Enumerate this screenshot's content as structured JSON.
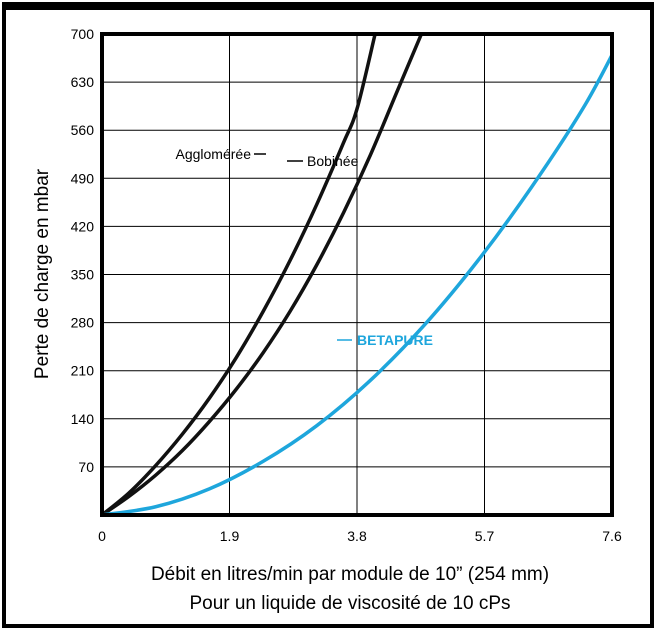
{
  "chart_data": {
    "type": "line",
    "xlabel": "Débit en litres/min par module de 10” (254 mm)",
    "xlabel2": "Pour un liquide de viscosité de 10 cPs",
    "ylabel": "Perte de charge en mbar",
    "xlim": [
      0,
      7.6
    ],
    "ylim": [
      0,
      700
    ],
    "x_ticks": [
      "0",
      "1.9",
      "3.8",
      "5.7",
      "7.6"
    ],
    "y_ticks": [
      "70",
      "140",
      "210",
      "280",
      "350",
      "420",
      "490",
      "560",
      "630",
      "700"
    ],
    "grid": true,
    "series": [
      {
        "name": "Agglomérée",
        "color": "#111111",
        "x": [
          0,
          0.4,
          0.8,
          1.2,
          1.6,
          2.0,
          2.4,
          2.8,
          3.2,
          3.6,
          3.8,
          4.07
        ],
        "y": [
          0,
          32,
          72,
          118,
          170,
          229,
          296,
          370,
          452,
          542,
          591,
          700
        ]
      },
      {
        "name": "Bobinée",
        "color": "#111111",
        "x": [
          0,
          0.4,
          0.8,
          1.2,
          1.6,
          2.0,
          2.4,
          2.8,
          3.2,
          3.6,
          4.0,
          4.4,
          4.76
        ],
        "y": [
          0,
          27,
          58,
          94,
          136,
          183,
          236,
          296,
          364,
          440,
          524,
          617,
          700
        ]
      },
      {
        "name": "BETAPURE",
        "color": "#1ea6dc",
        "x": [
          0,
          0.8,
          1.6,
          2.4,
          3.2,
          4.0,
          4.8,
          5.6,
          6.4,
          7.2,
          7.76
        ],
        "y": [
          0,
          12,
          38,
          78,
          130,
          196,
          276,
          370,
          477,
          597,
          700
        ]
      }
    ]
  }
}
